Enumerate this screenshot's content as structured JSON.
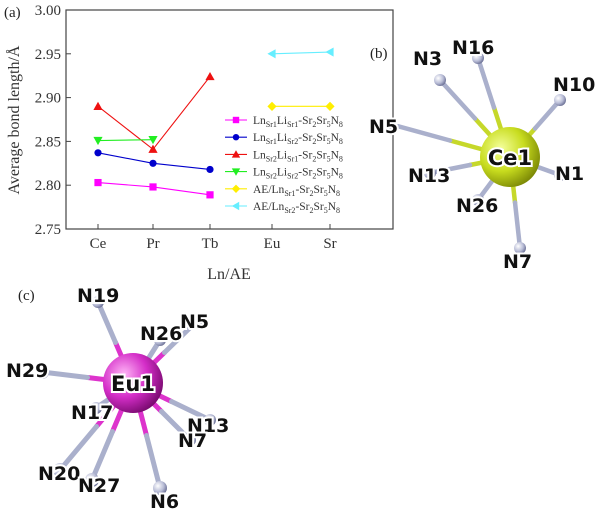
{
  "panels": {
    "a": {
      "label": "(a)"
    },
    "b": {
      "label": "(b)"
    },
    "c": {
      "label": "(c)"
    }
  },
  "chart_data": {
    "type": "line",
    "xlabel": "Ln/AE",
    "ylabel": "Average bond length/Å",
    "categories": [
      "Ce",
      "Pr",
      "Tb",
      "Eu",
      "Sr"
    ],
    "ylim": [
      2.75,
      3.0
    ],
    "yticks": [
      "2.75",
      "2.80",
      "2.85",
      "2.90",
      "2.95",
      "3.00"
    ],
    "grid": false,
    "legend_position": "right",
    "series": [
      {
        "name": "Ln_Sr1Li_Sr1-Sr2Sr5N8",
        "color": "#ff00ff",
        "marker": "square",
        "values": [
          2.803,
          2.798,
          2.789,
          null,
          null
        ]
      },
      {
        "name": "Ln_Sr1Li_Sr2-Sr2Sr5N8",
        "color": "#0000cc",
        "marker": "circle",
        "values": [
          2.837,
          2.825,
          2.818,
          null,
          null
        ]
      },
      {
        "name": "Ln_Sr2Li_Sr1-Sr2Sr5N8",
        "color": "#ee1111",
        "marker": "triangle-up",
        "values": [
          2.89,
          2.841,
          2.924,
          null,
          null
        ]
      },
      {
        "name": "Ln_Sr2Li_Sr2-Sr2Sr5N8",
        "color": "#22ee22",
        "marker": "triangle-down",
        "values": [
          2.851,
          2.852,
          null,
          null,
          null
        ]
      },
      {
        "name": "AE/Ln_Sr1-Sr2Sr5N8",
        "color": "#ffee00",
        "marker": "diamond",
        "values": [
          null,
          null,
          null,
          2.89,
          2.89
        ]
      },
      {
        "name": "AE/Ln_Sr2-Sr2Sr5N8",
        "color": "#66eeff",
        "marker": "triangle-left",
        "values": [
          null,
          null,
          null,
          2.95,
          2.952
        ]
      }
    ],
    "legend": [
      {
        "pre": "Ln",
        "sub1": "Sr1",
        "mid": "Li",
        "sub2": "Sr1",
        "post": "-Sr",
        "sub3": "2",
        "post2": "Sr",
        "sub4": "5",
        "post3": "N",
        "sub5": "8"
      },
      {
        "pre": "Ln",
        "sub1": "Sr1",
        "mid": "Li",
        "sub2": "Sr2",
        "post": "-Sr",
        "sub3": "2",
        "post2": "Sr",
        "sub4": "5",
        "post3": "N",
        "sub5": "8"
      },
      {
        "pre": "Ln",
        "sub1": "Sr2",
        "mid": "Li",
        "sub2": "Sr1",
        "post": "-Sr",
        "sub3": "2",
        "post2": "Sr",
        "sub4": "5",
        "post3": "N",
        "sub5": "8"
      },
      {
        "pre": "Ln",
        "sub1": "Sr2",
        "mid": "Li",
        "sub2": "Sr2",
        "post": "-Sr",
        "sub3": "2",
        "post2": "Sr",
        "sub4": "5",
        "post3": "N",
        "sub5": "8"
      },
      {
        "pre": "AE/Ln",
        "sub1": "Sr1",
        "mid": "",
        "sub2": "",
        "post": "-Sr",
        "sub3": "2",
        "post2": "Sr",
        "sub4": "5",
        "post3": "N",
        "sub5": "8"
      },
      {
        "pre": "AE/Ln",
        "sub1": "Sr2",
        "mid": "",
        "sub2": "",
        "post": "-Sr",
        "sub3": "2",
        "post2": "Sr",
        "sub4": "5",
        "post3": "N",
        "sub5": "8"
      }
    ]
  },
  "ce_structure": {
    "center": "Ce1",
    "center_color": "#c8dc1e",
    "bond_color": "#c6d82a",
    "ligand_color": "#aab0cc",
    "ligands": [
      "N3",
      "N16",
      "N10",
      "N5",
      "N13",
      "N1",
      "N26",
      "N7"
    ]
  },
  "eu_structure": {
    "center": "Eu1",
    "center_color": "#d42ec8",
    "bond_color": "#dd33cc",
    "ligand_color": "#aab0cc",
    "ligands": [
      "N19",
      "N26",
      "N5",
      "N29",
      "N17",
      "N13",
      "N7",
      "N20",
      "N27",
      "N6"
    ]
  }
}
